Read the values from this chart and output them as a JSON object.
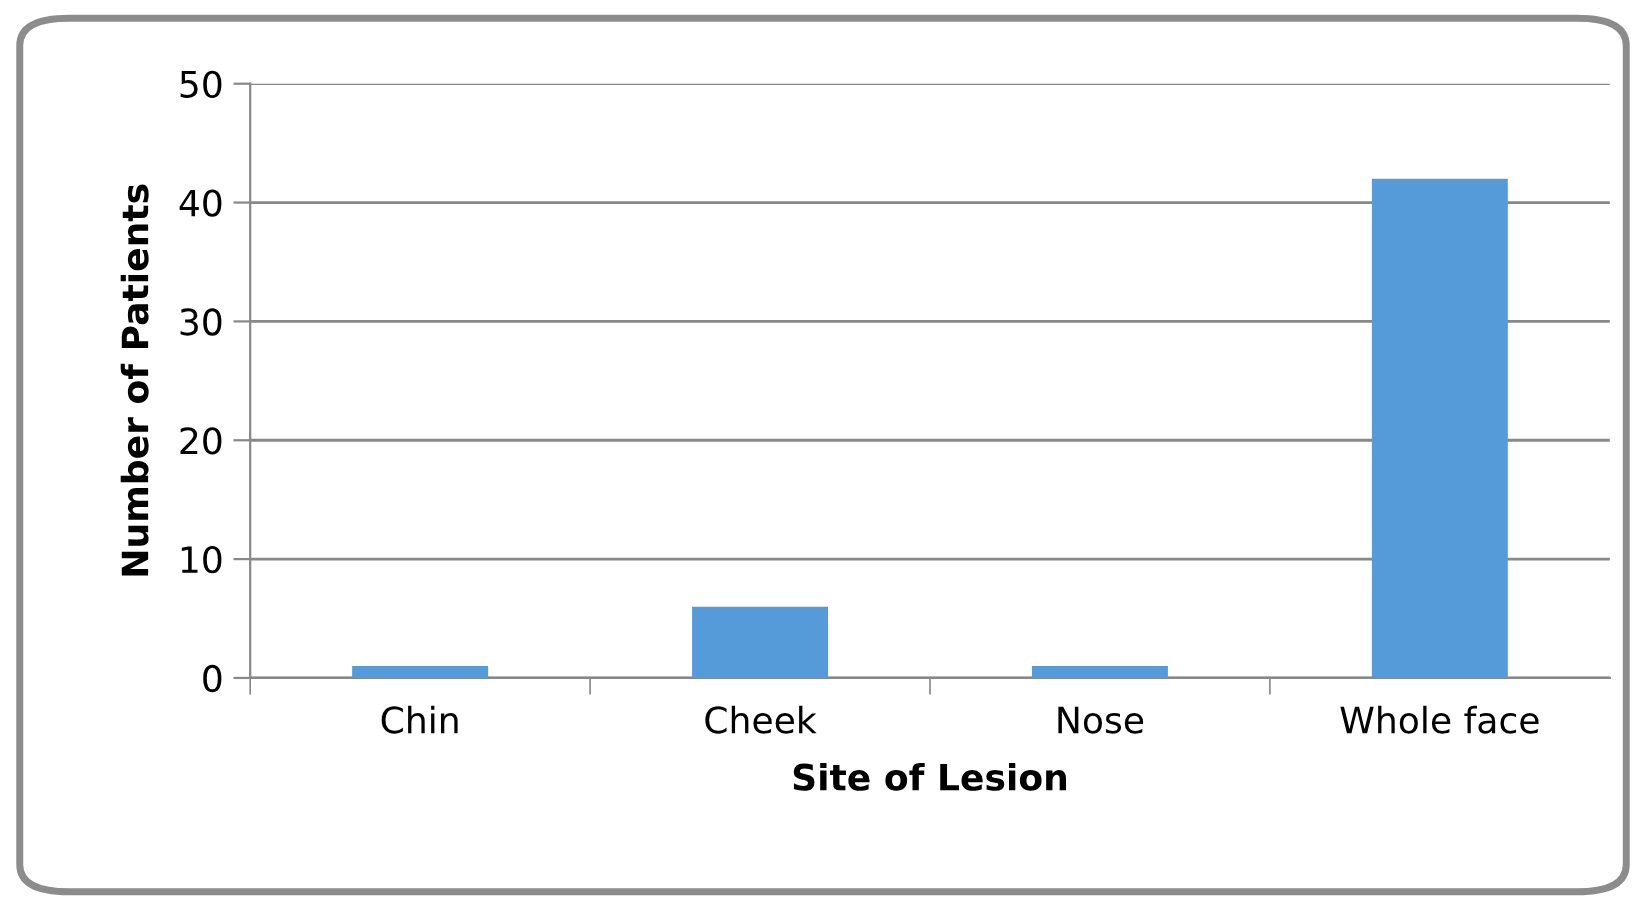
{
  "chart_data": {
    "type": "bar",
    "xlabel": "Site of Lesion",
    "ylabel": "Number of Patients",
    "categories": [
      "Chin",
      "Cheek",
      "Nose",
      "Whole face"
    ],
    "values": [
      1,
      6,
      1,
      42
    ],
    "color": "#559bd9",
    "ylim": [
      0,
      50
    ],
    "yticks": [
      0,
      10,
      20,
      30,
      40,
      50
    ],
    "grid": "y",
    "legend": false
  }
}
